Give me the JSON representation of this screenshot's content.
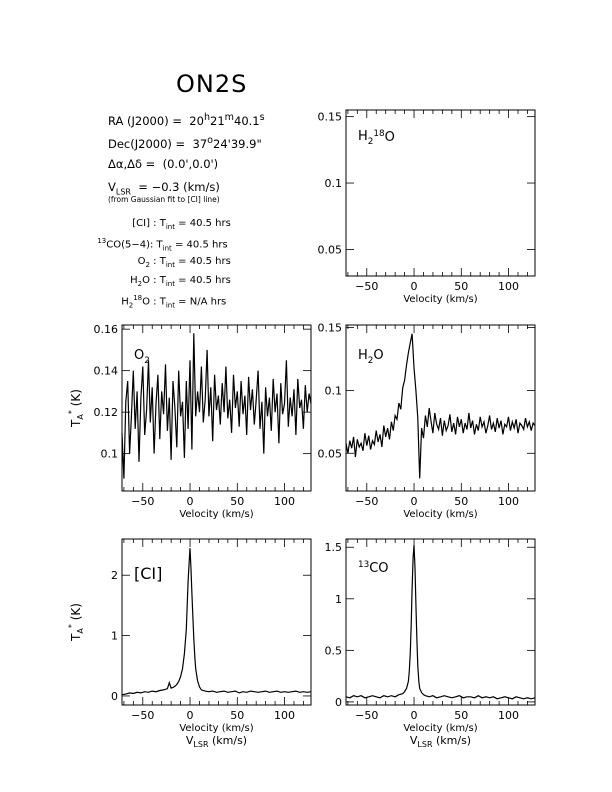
{
  "source": {
    "name": "ON2S",
    "ra_label": "RA (J2000)",
    "ra_value": "= 20h21m40.1s",
    "ra_h": "20",
    "ra_m": "21",
    "ra_s": "40.1",
    "dec_label": "Dec(J2000)",
    "dec_d": "37",
    "dec_m": "24",
    "dec_s": "39.9",
    "offset_label": "Δα,Δδ",
    "offset_value": "(0.0',0.0')",
    "vlsr_value": "−0.3 (km/s)",
    "vlsr_note": "(from Gaussian fit to [CI] line)",
    "integration_times": [
      {
        "species": "[CI]",
        "value": "40.5 hrs"
      },
      {
        "species": "13CO(5−4)",
        "value": "40.5 hrs"
      },
      {
        "species": "O2",
        "value": "40.5 hrs"
      },
      {
        "species": "H2O",
        "value": "40.5 hrs"
      },
      {
        "species": "H2 18O",
        "value": "N/A hrs"
      }
    ]
  },
  "axis_labels": {
    "velocity": "Velocity (km/s)",
    "vlsr": "(km/s)",
    "ta": "(K)"
  },
  "chart_data": [
    {
      "id": "h218o",
      "type": "line",
      "title": "H2 18O",
      "xlabel": "Velocity (km/s)",
      "ylabel": "",
      "xlim": [
        -72,
        128
      ],
      "ylim": [
        0.03,
        0.155
      ],
      "xticks": [
        -50,
        0,
        50,
        100
      ],
      "yticks": [
        0.05,
        0.1,
        0.15
      ],
      "ytick_labels": [
        "0.05",
        "0.1",
        "0.15"
      ],
      "series": []
    },
    {
      "id": "o2",
      "type": "line",
      "title": "O2",
      "xlabel": "Velocity (km/s)",
      "ylabel": "TA* (K)",
      "xlim": [
        -72,
        128
      ],
      "ylim": [
        0.082,
        0.162
      ],
      "xticks": [
        -50,
        0,
        50,
        100
      ],
      "yticks": [
        0.1,
        0.12,
        0.14,
        0.16
      ],
      "ytick_labels": [
        "0.1",
        "0.12",
        "0.14",
        "0.16"
      ],
      "series": [
        {
          "x": [
            -72,
            -70,
            -68,
            -66,
            -64,
            -62,
            -60,
            -58,
            -56,
            -54,
            -52,
            -50,
            -48,
            -46,
            -44,
            -42,
            -40,
            -38,
            -36,
            -34,
            -32,
            -30,
            -28,
            -26,
            -24,
            -22,
            -20,
            -18,
            -16,
            -14,
            -12,
            -10,
            -8,
            -6,
            -4,
            -2,
            0,
            2,
            4,
            6,
            8,
            10,
            12,
            14,
            16,
            18,
            20,
            22,
            24,
            26,
            28,
            30,
            32,
            34,
            36,
            38,
            40,
            42,
            44,
            46,
            48,
            50,
            52,
            54,
            56,
            58,
            60,
            62,
            64,
            66,
            68,
            70,
            72,
            74,
            76,
            78,
            80,
            82,
            84,
            86,
            88,
            90,
            92,
            94,
            96,
            98,
            100,
            102,
            104,
            106,
            108,
            110,
            112,
            114,
            116,
            118,
            120,
            122,
            124,
            126,
            128
          ],
          "y": [
            0.11,
            0.088,
            0.125,
            0.135,
            0.1,
            0.118,
            0.14,
            0.112,
            0.13,
            0.096,
            0.127,
            0.142,
            0.109,
            0.121,
            0.145,
            0.115,
            0.132,
            0.1,
            0.124,
            0.138,
            0.107,
            0.13,
            0.119,
            0.143,
            0.111,
            0.127,
            0.097,
            0.135,
            0.122,
            0.103,
            0.14,
            0.118,
            0.125,
            0.098,
            0.135,
            0.112,
            0.145,
            0.102,
            0.158,
            0.118,
            0.13,
            0.12,
            0.142,
            0.115,
            0.126,
            0.15,
            0.118,
            0.132,
            0.106,
            0.138,
            0.121,
            0.128,
            0.114,
            0.134,
            0.12,
            0.142,
            0.117,
            0.126,
            0.11,
            0.138,
            0.122,
            0.13,
            0.113,
            0.135,
            0.119,
            0.128,
            0.109,
            0.137,
            0.121,
            0.131,
            0.114,
            0.126,
            0.14,
            0.112,
            0.125,
            0.1,
            0.132,
            0.118,
            0.127,
            0.111,
            0.136,
            0.12,
            0.129,
            0.105,
            0.134,
            0.119,
            0.124,
            0.145,
            0.113,
            0.127,
            0.118,
            0.131,
            0.109,
            0.136,
            0.122,
            0.126,
            0.112,
            0.133,
            0.12,
            0.129,
            0.124
          ]
        }
      ]
    },
    {
      "id": "h2o",
      "type": "line",
      "title": "H2O",
      "xlabel": "Velocity (km/s)",
      "ylabel": "",
      "xlim": [
        -72,
        128
      ],
      "ylim": [
        0.02,
        0.152
      ],
      "xticks": [
        -50,
        0,
        50,
        100
      ],
      "yticks": [
        0.05,
        0.1,
        0.15
      ],
      "ytick_labels": [
        "0.05",
        "0.1",
        "0.15"
      ],
      "series": [
        {
          "x": [
            -72,
            -70,
            -68,
            -66,
            -64,
            -62,
            -60,
            -58,
            -56,
            -54,
            -52,
            -50,
            -48,
            -46,
            -44,
            -42,
            -40,
            -38,
            -36,
            -34,
            -32,
            -30,
            -28,
            -26,
            -24,
            -22,
            -20,
            -18,
            -16,
            -14,
            -12,
            -10,
            -8,
            -6,
            -4,
            -2,
            0,
            2,
            4,
            6,
            8,
            10,
            12,
            14,
            16,
            18,
            20,
            22,
            24,
            26,
            28,
            30,
            32,
            34,
            36,
            38,
            40,
            42,
            44,
            46,
            48,
            50,
            52,
            54,
            56,
            58,
            60,
            62,
            64,
            66,
            68,
            70,
            72,
            74,
            76,
            78,
            80,
            82,
            84,
            86,
            88,
            90,
            92,
            94,
            96,
            98,
            100,
            102,
            104,
            106,
            108,
            110,
            112,
            114,
            116,
            118,
            120,
            122,
            124,
            126,
            128
          ],
          "y": [
            0.058,
            0.05,
            0.06,
            0.054,
            0.063,
            0.047,
            0.061,
            0.055,
            0.058,
            0.052,
            0.066,
            0.056,
            0.064,
            0.053,
            0.06,
            0.057,
            0.068,
            0.059,
            0.065,
            0.055,
            0.072,
            0.063,
            0.07,
            0.061,
            0.075,
            0.068,
            0.08,
            0.077,
            0.09,
            0.085,
            0.102,
            0.108,
            0.12,
            0.13,
            0.138,
            0.145,
            0.118,
            0.1,
            0.078,
            0.03,
            0.07,
            0.062,
            0.08,
            0.071,
            0.086,
            0.075,
            0.066,
            0.082,
            0.073,
            0.069,
            0.078,
            0.064,
            0.076,
            0.068,
            0.072,
            0.081,
            0.067,
            0.074,
            0.065,
            0.079,
            0.071,
            0.077,
            0.066,
            0.074,
            0.069,
            0.082,
            0.07,
            0.076,
            0.065,
            0.073,
            0.068,
            0.079,
            0.071,
            0.075,
            0.066,
            0.072,
            0.08,
            0.069,
            0.074,
            0.067,
            0.078,
            0.07,
            0.076,
            0.065,
            0.073,
            0.071,
            0.079,
            0.068,
            0.075,
            0.07,
            0.077,
            0.066,
            0.074,
            0.072,
            0.069,
            0.078,
            0.071,
            0.075,
            0.068,
            0.074,
            0.072
          ]
        }
      ]
    },
    {
      "id": "ci",
      "type": "line",
      "title": "[CI]",
      "xlabel": "Velocity (km/s)",
      "ylabel": "TA* (K)",
      "xlim": [
        -72,
        128
      ],
      "ylim": [
        -0.15,
        2.6
      ],
      "xticks": [
        -50,
        0,
        50,
        100
      ],
      "yticks": [
        0,
        1,
        2
      ],
      "ytick_labels": [
        "0",
        "1",
        "2"
      ],
      "series": [
        {
          "x": [
            -72,
            -68,
            -64,
            -60,
            -56,
            -52,
            -48,
            -44,
            -40,
            -36,
            -32,
            -28,
            -24,
            -22,
            -20,
            -18,
            -16,
            -14,
            -12,
            -10,
            -8,
            -6,
            -4,
            -3,
            -2,
            -1,
            0,
            1,
            2,
            3,
            4,
            5,
            6,
            8,
            10,
            12,
            16,
            20,
            24,
            28,
            32,
            36,
            40,
            44,
            48,
            52,
            56,
            60,
            64,
            68,
            72,
            76,
            80,
            84,
            88,
            92,
            96,
            100,
            104,
            108,
            112,
            116,
            120,
            124,
            128
          ],
          "y": [
            0.02,
            0.03,
            0.05,
            0.04,
            0.06,
            0.05,
            0.07,
            0.06,
            0.08,
            0.07,
            0.09,
            0.1,
            0.12,
            0.22,
            0.13,
            0.14,
            0.16,
            0.19,
            0.24,
            0.32,
            0.45,
            0.7,
            1.1,
            1.5,
            1.9,
            2.2,
            2.45,
            2.1,
            1.7,
            1.3,
            0.95,
            0.65,
            0.45,
            0.25,
            0.15,
            0.1,
            0.08,
            0.07,
            0.08,
            0.06,
            0.07,
            0.08,
            0.06,
            0.07,
            0.08,
            0.05,
            0.07,
            0.06,
            0.08,
            0.07,
            0.06,
            0.07,
            0.08,
            0.06,
            0.07,
            0.08,
            0.06,
            0.07,
            0.06,
            0.07,
            0.08,
            0.06,
            0.07,
            0.06,
            0.07
          ]
        }
      ]
    },
    {
      "id": "13co",
      "type": "line",
      "title": "13CO",
      "xlabel": "Velocity (km/s)",
      "ylabel": "",
      "xlim": [
        -72,
        128
      ],
      "ylim": [
        -0.03,
        1.58
      ],
      "xticks": [
        -50,
        0,
        50,
        100
      ],
      "yticks": [
        0,
        0.5,
        1,
        1.5
      ],
      "ytick_labels": [
        "0",
        "0.5",
        "1",
        "1.5"
      ],
      "series": [
        {
          "x": [
            -72,
            -68,
            -64,
            -60,
            -56,
            -52,
            -48,
            -44,
            -40,
            -36,
            -32,
            -28,
            -24,
            -20,
            -16,
            -12,
            -10,
            -8,
            -6,
            -5,
            -4,
            -3,
            -2,
            -1,
            0,
            1,
            2,
            3,
            4,
            5,
            6,
            8,
            10,
            12,
            16,
            20,
            24,
            28,
            32,
            36,
            40,
            44,
            48,
            52,
            56,
            60,
            64,
            68,
            72,
            76,
            80,
            84,
            88,
            92,
            96,
            100,
            104,
            108,
            112,
            116,
            120,
            124,
            128
          ],
          "y": [
            0.05,
            0.04,
            0.06,
            0.05,
            0.06,
            0.04,
            0.05,
            0.06,
            0.05,
            0.04,
            0.06,
            0.05,
            0.06,
            0.05,
            0.07,
            0.08,
            0.1,
            0.13,
            0.2,
            0.3,
            0.48,
            0.75,
            1.1,
            1.4,
            1.52,
            1.3,
            0.95,
            0.6,
            0.35,
            0.2,
            0.13,
            0.09,
            0.07,
            0.06,
            0.05,
            0.06,
            0.04,
            0.05,
            0.06,
            0.05,
            0.04,
            0.05,
            0.06,
            0.04,
            0.05,
            0.05,
            0.04,
            0.06,
            0.04,
            0.05,
            0.04,
            0.05,
            0.03,
            0.04,
            0.05,
            0.04,
            0.03,
            0.05,
            0.04,
            0.03,
            0.04,
            0.03,
            0.04
          ]
        }
      ]
    }
  ]
}
